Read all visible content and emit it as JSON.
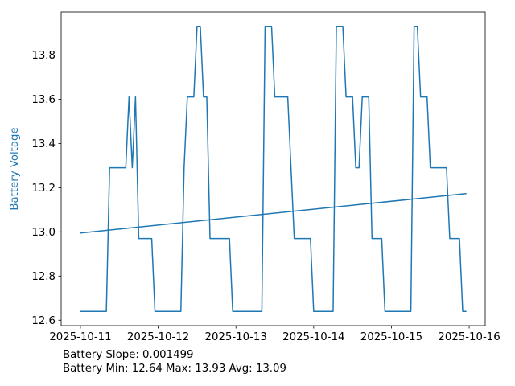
{
  "figure": {
    "footer": {
      "line1": "Battery Slope: 0.001499",
      "line2": "Battery Min: 12.64 Max: 13.93 Avg: 13.09"
    }
  },
  "chart_data": {
    "type": "line",
    "title": "",
    "xlabel": "",
    "ylabel": "Battery Voltage",
    "ylabel_color": "#1f77b4",
    "line_color": "#1f77b4",
    "trend_color": "#1f77b4",
    "background": "#ffffff",
    "grid": false,
    "legend": "none",
    "x_start": "2025-10-11 00:00",
    "x_interval_hours": 1,
    "xtick_hours": [
      0,
      24,
      48,
      72,
      96,
      120
    ],
    "xtick_labels": [
      "2025-10-11",
      "2025-10-12",
      "2025-10-13",
      "2025-10-14",
      "2025-10-15",
      "2025-10-16"
    ],
    "ytick_values": [
      12.6,
      12.8,
      13.0,
      13.2,
      13.4,
      13.6,
      13.8
    ],
    "ytick_labels": [
      "12.6",
      "12.8",
      "13.0",
      "13.2",
      "13.4",
      "13.6",
      "13.8"
    ],
    "ylim": [
      12.5755,
      13.9945
    ],
    "xlim_hours": [
      -5.95,
      124.95
    ],
    "series": [
      {
        "name": "battery-voltage",
        "values": [
          12.64,
          12.64,
          12.64,
          12.64,
          12.64,
          12.64,
          12.64,
          12.64,
          12.64,
          13.29,
          13.29,
          13.29,
          13.29,
          13.29,
          13.29,
          13.61,
          13.29,
          13.61,
          12.97,
          12.97,
          12.97,
          12.97,
          12.97,
          12.64,
          12.64,
          12.64,
          12.64,
          12.64,
          12.64,
          12.64,
          12.64,
          12.64,
          13.29,
          13.61,
          13.61,
          13.61,
          13.93,
          13.93,
          13.61,
          13.61,
          12.97,
          12.97,
          12.97,
          12.97,
          12.97,
          12.97,
          12.97,
          12.64,
          12.64,
          12.64,
          12.64,
          12.64,
          12.64,
          12.64,
          12.64,
          12.64,
          12.64,
          13.93,
          13.93,
          13.93,
          13.61,
          13.61,
          13.61,
          13.61,
          13.61,
          13.29,
          12.97,
          12.97,
          12.97,
          12.97,
          12.97,
          12.97,
          12.64,
          12.64,
          12.64,
          12.64,
          12.64,
          12.64,
          12.64,
          13.93,
          13.93,
          13.93,
          13.61,
          13.61,
          13.61,
          13.29,
          13.29,
          13.61,
          13.61,
          13.61,
          12.97,
          12.97,
          12.97,
          12.97,
          12.64,
          12.64,
          12.64,
          12.64,
          12.64,
          12.64,
          12.64,
          12.64,
          12.64,
          13.93,
          13.93,
          13.61,
          13.61,
          13.61,
          13.29,
          13.29,
          13.29,
          13.29,
          13.29,
          13.29,
          12.97,
          12.97,
          12.97,
          12.97,
          12.64,
          12.64
        ]
      },
      {
        "name": "trend",
        "start_value": 12.995,
        "end_value": 13.173,
        "start_hour": 0,
        "end_hour": 119
      }
    ],
    "stats": {
      "slope": 0.001499,
      "min": 12.64,
      "max": 13.93,
      "avg": 13.09
    }
  }
}
